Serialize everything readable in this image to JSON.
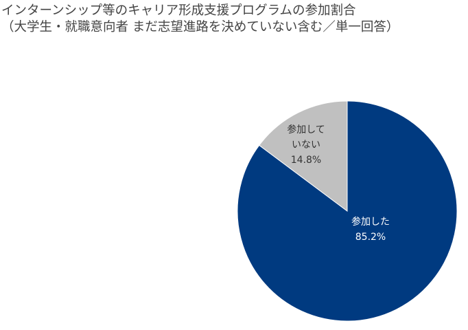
{
  "chart_data": {
    "type": "pie",
    "title": "インターンシップ等のキャリア形成支援プログラムの参加割合",
    "subtitle": "（大学生・就職意向者 まだ志望進路を決めていない含む／単一回答）",
    "slices": [
      {
        "label": "参加した",
        "value": 85.2,
        "value_label": "85.2%",
        "color": "#003a80",
        "text_color": "#ffffff"
      },
      {
        "label_lines": [
          "参加して",
          "いない"
        ],
        "label": "参加していない",
        "value": 14.8,
        "value_label": "14.8%",
        "color": "#c0c0c0",
        "text_color": "#333333"
      }
    ],
    "start": "12 o'clock, clockwise",
    "legend": "none"
  }
}
